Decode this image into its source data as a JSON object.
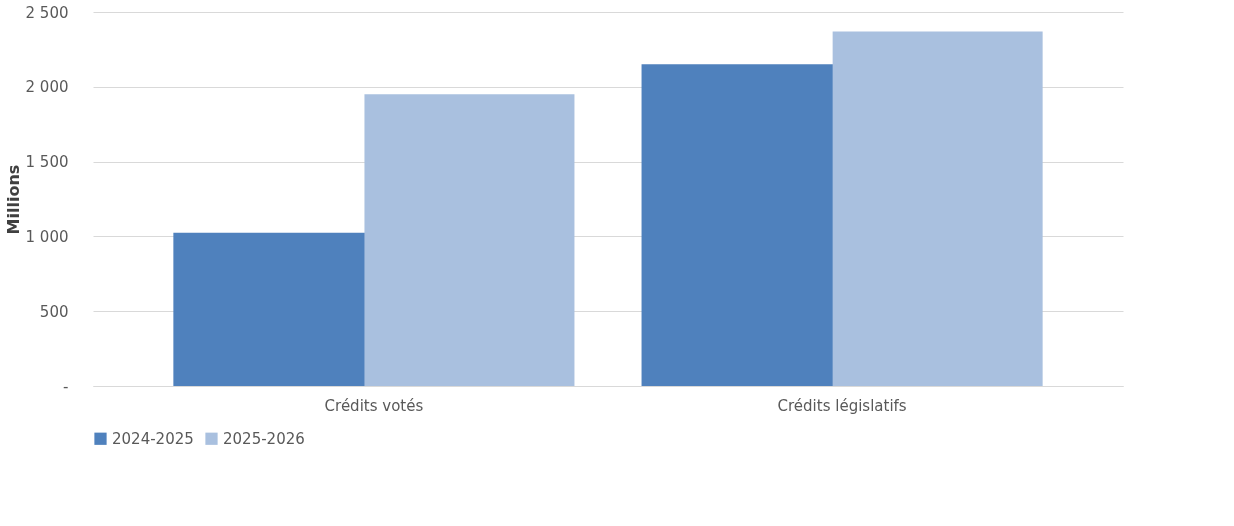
{
  "chart_data": {
    "type": "bar",
    "ylabel": "Millions",
    "categories": [
      "Crédits votés",
      "Crédits législatifs"
    ],
    "series": [
      {
        "name": "2024-2025",
        "color": "#4f81bd",
        "values": [
          1025,
          2150
        ]
      },
      {
        "name": "2025-2026",
        "color": "#a9c0df",
        "values": [
          1950,
          2370
        ]
      }
    ],
    "ylim": [
      0,
      2500
    ],
    "yticks": [
      {
        "value": 0,
        "label": "-"
      },
      500,
      {
        "value": 1000,
        "label": "1 000"
      },
      {
        "value": 1500,
        "label": "1 500"
      },
      {
        "value": 2000,
        "label": "2 000"
      },
      {
        "value": 2500,
        "label": "2 500"
      }
    ],
    "grid": "y",
    "legend": "bottom"
  }
}
